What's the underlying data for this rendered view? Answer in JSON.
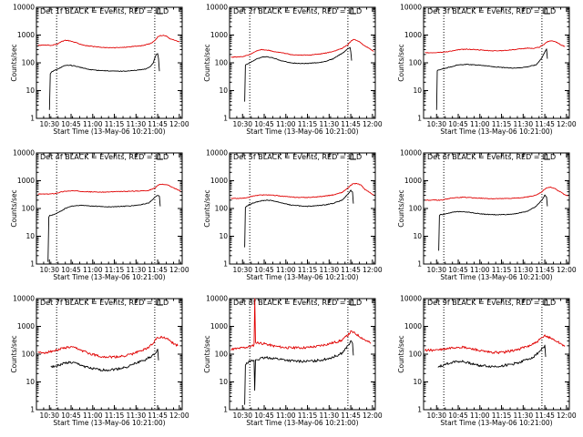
{
  "figure": {
    "yaxis_label": "Counts/sec",
    "xaxis_label": "Start Time (13-May-06 10:21:00)",
    "x_tick_labels": [
      "10:30",
      "10:45",
      "11:00",
      "11:15",
      "11:30",
      "11:45",
      "12:00"
    ],
    "y_tick_labels": [
      "1",
      "10",
      "100",
      "1000",
      "10000"
    ],
    "colors": {
      "events": "#000000",
      "lld": "#e00000",
      "axes": "#000000",
      "background": "#ffffff"
    }
  },
  "chart_data": [
    {
      "type": "line",
      "title": "Det 1f BLACK = Events, RED = LLD",
      "x_unit": "minutes after 10:21:00 (13-May-06)",
      "xlim": [
        0,
        101
      ],
      "ylim": [
        1,
        10000
      ],
      "yscale": "log",
      "vlines": [
        14,
        82
      ],
      "series": [
        {
          "name": "LLD",
          "color": "#e00000",
          "x": [
            1,
            5,
            10,
            14,
            18,
            20,
            23,
            26,
            30,
            34,
            40,
            45,
            50,
            55,
            60,
            65,
            70,
            75,
            80,
            82,
            84,
            86,
            88,
            90,
            93,
            96,
            99
          ],
          "y": [
            420,
            440,
            430,
            460,
            600,
            650,
            620,
            560,
            480,
            420,
            380,
            360,
            350,
            350,
            360,
            380,
            400,
            430,
            520,
            640,
            850,
            950,
            980,
            920,
            700,
            650,
            560
          ]
        },
        {
          "name": "Events",
          "color": "#000000",
          "x": [
            9,
            9.6,
            10.2,
            11,
            13,
            16,
            20,
            23,
            26,
            30,
            36,
            42,
            48,
            54,
            60,
            66,
            72,
            76,
            79,
            81,
            82,
            83,
            84,
            84.6,
            85.2
          ],
          "y": [
            2,
            40,
            45,
            48,
            55,
            65,
            80,
            82,
            78,
            70,
            58,
            54,
            52,
            50,
            50,
            52,
            56,
            60,
            75,
            100,
            150,
            200,
            220,
            140,
            50
          ]
        }
      ]
    },
    {
      "type": "line",
      "title": "Det 2f BLACK = Events, RED = LLD",
      "x_unit": "minutes after 10:21:00 (13-May-06)",
      "xlim": [
        0,
        101
      ],
      "ylim": [
        1,
        10000
      ],
      "yscale": "log",
      "vlines": [
        14,
        82
      ],
      "series": [
        {
          "name": "LLD",
          "color": "#e00000",
          "x": [
            1,
            5,
            10,
            14,
            18,
            22,
            26,
            30,
            36,
            42,
            48,
            54,
            60,
            66,
            72,
            78,
            82,
            84,
            86,
            88,
            91,
            94,
            97,
            100
          ],
          "y": [
            160,
            160,
            170,
            200,
            260,
            300,
            290,
            260,
            230,
            200,
            190,
            190,
            200,
            220,
            260,
            330,
            450,
            600,
            700,
            650,
            520,
            400,
            330,
            260
          ]
        },
        {
          "name": "Events",
          "color": "#000000",
          "x": [
            10.5,
            11,
            11.8,
            14,
            18,
            22,
            26,
            30,
            36,
            42,
            48,
            54,
            60,
            66,
            72,
            76,
            80,
            82,
            83.5,
            84,
            84.6
          ],
          "y": [
            4,
            80,
            90,
            100,
            130,
            160,
            165,
            150,
            120,
            100,
            95,
            95,
            100,
            110,
            140,
            190,
            260,
            330,
            350,
            250,
            120
          ]
        }
      ]
    },
    {
      "type": "line",
      "title": "Det 3f BLACK = Events, RED = LLD",
      "x_unit": "minutes after 10:21:00 (13-May-06)",
      "xlim": [
        0,
        101
      ],
      "ylim": [
        1,
        10000
      ],
      "yscale": "log",
      "vlines": [
        14,
        82
      ],
      "series": [
        {
          "name": "LLD",
          "color": "#e00000",
          "x": [
            1,
            6,
            12,
            16,
            20,
            25,
            30,
            36,
            42,
            48,
            54,
            60,
            66,
            72,
            76,
            80,
            83,
            86,
            89,
            92,
            95,
            98
          ],
          "y": [
            230,
            230,
            240,
            250,
            270,
            300,
            310,
            300,
            280,
            270,
            275,
            290,
            310,
            340,
            330,
            360,
            450,
            580,
            620,
            560,
            450,
            380
          ]
        },
        {
          "name": "Events",
          "color": "#000000",
          "x": [
            9,
            9.5,
            10,
            14,
            18,
            22,
            26,
            30,
            36,
            42,
            48,
            54,
            60,
            66,
            72,
            78,
            82,
            84,
            85.2,
            85.8
          ],
          "y": [
            2,
            50,
            55,
            62,
            70,
            80,
            85,
            88,
            84,
            80,
            72,
            68,
            65,
            66,
            72,
            85,
            150,
            250,
            320,
            140
          ]
        }
      ]
    },
    {
      "type": "line",
      "title": "Det 4f BLACK = Events, RED = LLD",
      "x_unit": "minutes after 10:21:00 (13-May-06)",
      "xlim": [
        0,
        101
      ],
      "ylim": [
        1,
        10000
      ],
      "yscale": "log",
      "vlines": [
        14,
        82
      ],
      "series": [
        {
          "name": "LLD",
          "color": "#e00000",
          "x": [
            1,
            6,
            12,
            16,
            20,
            25,
            30,
            36,
            42,
            48,
            54,
            60,
            66,
            72,
            78,
            82,
            85,
            88,
            91,
            94,
            97,
            100
          ],
          "y": [
            330,
            330,
            340,
            380,
            420,
            430,
            420,
            400,
            390,
            390,
            400,
            410,
            420,
            430,
            450,
            550,
            720,
            750,
            700,
            580,
            500,
            420
          ]
        },
        {
          "name": "Events",
          "color": "#000000",
          "x": [
            8,
            8.6,
            9.2,
            12,
            16,
            20,
            24,
            30,
            36,
            42,
            48,
            54,
            60,
            66,
            72,
            78,
            82,
            84,
            85.2,
            85.8
          ],
          "y": [
            1.2,
            50,
            55,
            60,
            75,
            100,
            120,
            130,
            125,
            120,
            115,
            115,
            120,
            125,
            135,
            160,
            250,
            300,
            280,
            120
          ]
        }
      ]
    },
    {
      "type": "line",
      "title": "Det 5f BLACK = Events, RED = LLD",
      "x_unit": "minutes after 10:21:00 (13-May-06)",
      "xlim": [
        0,
        101
      ],
      "ylim": [
        1,
        10000
      ],
      "yscale": "log",
      "vlines": [
        14,
        82
      ],
      "series": [
        {
          "name": "LLD",
          "color": "#e00000",
          "x": [
            1,
            6,
            12,
            16,
            20,
            25,
            30,
            36,
            42,
            48,
            54,
            60,
            66,
            72,
            78,
            82,
            85,
            88,
            91,
            94,
            97,
            100
          ],
          "y": [
            230,
            230,
            240,
            280,
            300,
            310,
            300,
            280,
            260,
            250,
            250,
            260,
            280,
            310,
            380,
            550,
            750,
            800,
            700,
            480,
            380,
            300
          ]
        },
        {
          "name": "Events",
          "color": "#000000",
          "x": [
            10.5,
            11,
            11.8,
            14,
            18,
            22,
            26,
            30,
            36,
            42,
            48,
            54,
            60,
            66,
            72,
            78,
            82,
            84,
            85.2,
            85.8
          ],
          "y": [
            4,
            110,
            120,
            140,
            170,
            190,
            200,
            190,
            160,
            135,
            125,
            120,
            125,
            135,
            155,
            200,
            320,
            450,
            380,
            150
          ]
        }
      ]
    },
    {
      "type": "line",
      "title": "Det 6f BLACK = Events, RED = LLD",
      "x_unit": "minutes after 10:21:00 (13-May-06)",
      "xlim": [
        0,
        101
      ],
      "ylim": [
        1,
        10000
      ],
      "yscale": "log",
      "vlines": [
        14,
        82
      ],
      "series": [
        {
          "name": "LLD",
          "color": "#e00000",
          "x": [
            1,
            6,
            12,
            16,
            20,
            25,
            30,
            36,
            42,
            48,
            54,
            60,
            66,
            72,
            78,
            82,
            85,
            88,
            91,
            94,
            97,
            100
          ],
          "y": [
            200,
            200,
            200,
            220,
            240,
            250,
            250,
            240,
            230,
            225,
            225,
            230,
            240,
            260,
            300,
            400,
            550,
            580,
            520,
            420,
            330,
            280
          ]
        },
        {
          "name": "Events",
          "color": "#000000",
          "x": [
            10.5,
            11,
            11.8,
            14,
            18,
            22,
            26,
            30,
            36,
            42,
            48,
            54,
            60,
            66,
            72,
            78,
            82,
            84,
            85.2,
            85.8
          ],
          "y": [
            3,
            55,
            60,
            62,
            70,
            75,
            78,
            75,
            68,
            62,
            60,
            60,
            62,
            68,
            80,
            120,
            200,
            300,
            260,
            120
          ]
        }
      ]
    },
    {
      "type": "line",
      "title": "Det 7f BLACK = Events, RED = LLD",
      "x_unit": "minutes after 10:21:00 (13-May-06)",
      "xlim": [
        0,
        101
      ],
      "ylim": [
        1,
        10000
      ],
      "yscale": "log",
      "vlines": [
        14,
        82
      ],
      "series": [
        {
          "name": "LLD",
          "color": "#e00000",
          "x": [
            1,
            6,
            12,
            16,
            20,
            24,
            28,
            32,
            36,
            40,
            44,
            48,
            52,
            56,
            60,
            66,
            72,
            78,
            82,
            84,
            86,
            89,
            92,
            95,
            98
          ],
          "y": [
            110,
            115,
            130,
            150,
            170,
            175,
            160,
            130,
            110,
            95,
            85,
            80,
            78,
            80,
            85,
            100,
            130,
            180,
            300,
            400,
            420,
            380,
            320,
            240,
            200
          ]
        },
        {
          "name": "Events",
          "color": "#000000",
          "x": [
            10,
            14,
            18,
            22,
            26,
            30,
            34,
            38,
            42,
            46,
            50,
            54,
            60,
            66,
            72,
            76,
            80,
            82,
            84,
            84.6
          ],
          "y": [
            35,
            38,
            45,
            50,
            48,
            42,
            35,
            30,
            28,
            27,
            27,
            28,
            32,
            40,
            55,
            65,
            85,
            110,
            140,
            60
          ]
        }
      ]
    },
    {
      "type": "line",
      "title": "Det 8f BLACK = Events, RED = LLD",
      "x_unit": "minutes after 10:21:00 (13-May-06)",
      "xlim": [
        0,
        101
      ],
      "ylim": [
        1,
        10000
      ],
      "yscale": "log",
      "vlines": [
        14,
        82
      ],
      "series": [
        {
          "name": "LLD",
          "color": "#e00000",
          "x": [
            1,
            6,
            12,
            16,
            17,
            17.5,
            18,
            20,
            24,
            30,
            36,
            42,
            48,
            54,
            60,
            66,
            72,
            78,
            82,
            84,
            86,
            89,
            92,
            95,
            98
          ],
          "y": [
            150,
            160,
            180,
            200,
            220,
            10000,
            260,
            260,
            240,
            200,
            180,
            170,
            170,
            175,
            190,
            220,
            260,
            320,
            480,
            650,
            600,
            480,
            380,
            300,
            250
          ]
        },
        {
          "name": "Events",
          "color": "#000000",
          "x": [
            10.5,
            11,
            11.8,
            14,
            17,
            17.4,
            18,
            22,
            26,
            30,
            36,
            42,
            48,
            54,
            60,
            66,
            72,
            78,
            82,
            84,
            85.2,
            85.8
          ],
          "y": [
            1.5,
            45,
            50,
            55,
            60,
            5,
            62,
            70,
            75,
            72,
            65,
            58,
            55,
            55,
            58,
            65,
            80,
            110,
            200,
            280,
            260,
            90
          ]
        }
      ]
    },
    {
      "type": "line",
      "title": "Det 9f BLACK = Events, RED = LLD",
      "x_unit": "minutes after 10:21:00 (13-May-06)",
      "xlim": [
        0,
        101
      ],
      "ylim": [
        1,
        10000
      ],
      "yscale": "log",
      "vlines": [
        14,
        82
      ],
      "series": [
        {
          "name": "LLD",
          "color": "#e00000",
          "x": [
            1,
            6,
            12,
            16,
            20,
            24,
            28,
            32,
            36,
            40,
            44,
            48,
            52,
            56,
            60,
            66,
            72,
            78,
            82,
            84,
            86,
            89,
            92,
            95,
            98
          ],
          "y": [
            140,
            140,
            145,
            155,
            170,
            180,
            175,
            160,
            145,
            130,
            120,
            115,
            115,
            120,
            130,
            150,
            190,
            260,
            380,
            450,
            430,
            360,
            300,
            240,
            200
          ]
        },
        {
          "name": "Events",
          "color": "#000000",
          "x": [
            10,
            14,
            18,
            22,
            26,
            30,
            34,
            38,
            42,
            46,
            50,
            54,
            60,
            66,
            72,
            76,
            80,
            82,
            84,
            84.6
          ],
          "y": [
            35,
            40,
            48,
            55,
            55,
            50,
            45,
            40,
            38,
            36,
            36,
            38,
            42,
            50,
            65,
            80,
            120,
            160,
            200,
            80
          ]
        }
      ]
    }
  ]
}
